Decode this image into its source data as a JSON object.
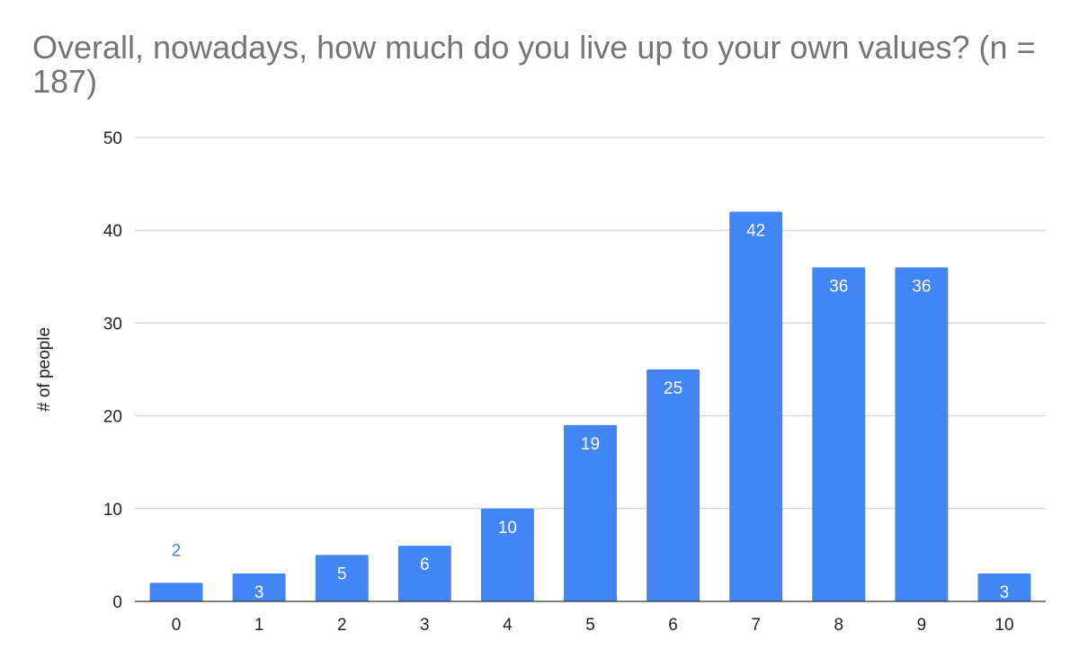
{
  "chart_data": {
    "type": "bar",
    "title": "Overall, nowadays, how much do you live up to your own values? (n = 187)",
    "xlabel": "",
    "ylabel": "# of people",
    "categories": [
      "0",
      "1",
      "2",
      "3",
      "4",
      "5",
      "6",
      "7",
      "8",
      "9",
      "10"
    ],
    "values": [
      2,
      3,
      5,
      6,
      10,
      19,
      25,
      42,
      36,
      36,
      3
    ],
    "ylim": [
      0,
      50
    ],
    "yticks": [
      0,
      10,
      20,
      30,
      40,
      50
    ],
    "grid": true,
    "legend": "none",
    "bar_color": "#4285f4",
    "label_color_inside": "#ffffff",
    "label_color_outside": "#4285f4"
  }
}
